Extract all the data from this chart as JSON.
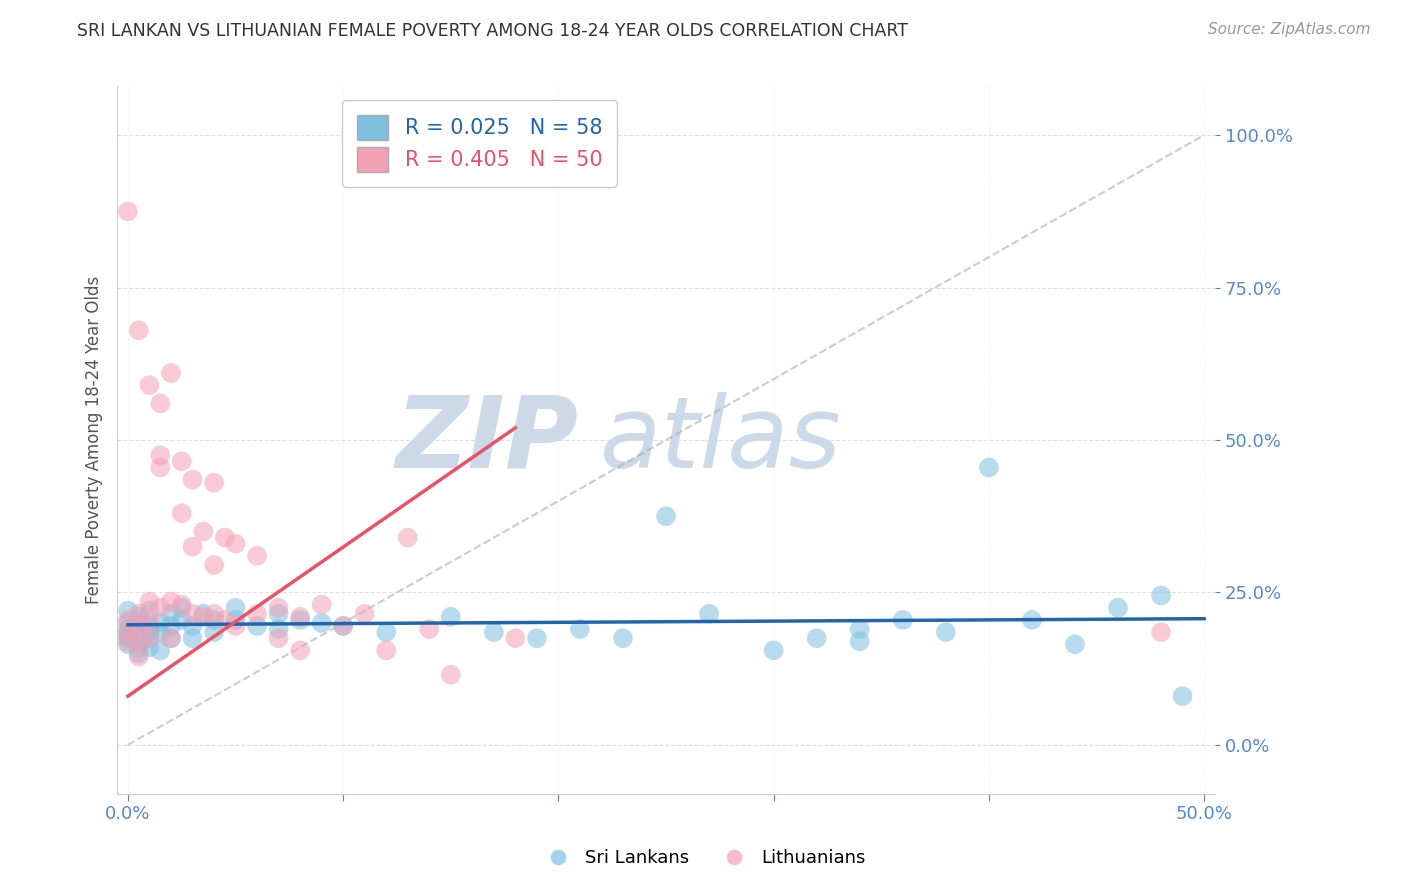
{
  "title": "SRI LANKAN VS LITHUANIAN FEMALE POVERTY AMONG 18-24 YEAR OLDS CORRELATION CHART",
  "source": "Source: ZipAtlas.com",
  "ylabel": "Female Poverty Among 18-24 Year Olds",
  "xlim": [
    -0.005,
    0.505
  ],
  "ylim": [
    -0.08,
    1.08
  ],
  "xticks": [
    0.0,
    0.1,
    0.2,
    0.3,
    0.4,
    0.5
  ],
  "xticklabels_show": [
    "0.0%",
    "",
    "",
    "",
    "",
    "50.0%"
  ],
  "yticks": [
    0.0,
    0.25,
    0.5,
    0.75,
    1.0
  ],
  "yticklabels": [
    "0.0%",
    "25.0%",
    "50.0%",
    "75.0%",
    "100.0%"
  ],
  "sri_lankan_color": "#7fbfdf",
  "lithuanian_color": "#f4a0b5",
  "sri_lankan_line_color": "#2166ac",
  "lithuanian_line_color": "#e8536a",
  "legend_r_sri": "R = 0.025",
  "legend_n_sri": "N = 58",
  "legend_r_lit": "R = 0.405",
  "legend_n_lit": "N = 50",
  "watermark_zip": "ZIP",
  "watermark_atlas": "atlas",
  "watermark_color": "#ccd9e8",
  "background_color": "#ffffff",
  "grid_color": "#dddddd",
  "tick_color": "#5588cc",
  "sri_lankans_x": [
    0.0,
    0.0,
    0.0,
    0.0,
    0.0,
    0.0,
    0.005,
    0.005,
    0.005,
    0.005,
    0.005,
    0.005,
    0.01,
    0.01,
    0.01,
    0.01,
    0.01,
    0.015,
    0.015,
    0.015,
    0.02,
    0.02,
    0.02,
    0.025,
    0.025,
    0.03,
    0.03,
    0.035,
    0.04,
    0.04,
    0.05,
    0.05,
    0.06,
    0.07,
    0.07,
    0.08,
    0.09,
    0.1,
    0.12,
    0.15,
    0.17,
    0.19,
    0.21,
    0.23,
    0.25,
    0.27,
    0.3,
    0.32,
    0.34,
    0.34,
    0.36,
    0.38,
    0.4,
    0.42,
    0.44,
    0.46,
    0.48,
    0.49
  ],
  "sri_lankans_y": [
    0.2,
    0.19,
    0.18,
    0.175,
    0.165,
    0.22,
    0.195,
    0.21,
    0.16,
    0.18,
    0.15,
    0.2,
    0.185,
    0.175,
    0.22,
    0.195,
    0.16,
    0.2,
    0.185,
    0.155,
    0.215,
    0.195,
    0.175,
    0.205,
    0.225,
    0.195,
    0.175,
    0.215,
    0.205,
    0.185,
    0.205,
    0.225,
    0.195,
    0.215,
    0.19,
    0.205,
    0.2,
    0.195,
    0.185,
    0.21,
    0.185,
    0.175,
    0.19,
    0.175,
    0.375,
    0.215,
    0.155,
    0.175,
    0.17,
    0.19,
    0.205,
    0.185,
    0.455,
    0.205,
    0.165,
    0.225,
    0.245,
    0.08
  ],
  "lithuanians_x": [
    0.0,
    0.0,
    0.0,
    0.0,
    0.005,
    0.005,
    0.005,
    0.005,
    0.005,
    0.01,
    0.01,
    0.01,
    0.01,
    0.015,
    0.015,
    0.015,
    0.015,
    0.02,
    0.02,
    0.02,
    0.025,
    0.025,
    0.025,
    0.03,
    0.03,
    0.03,
    0.035,
    0.035,
    0.04,
    0.04,
    0.04,
    0.045,
    0.045,
    0.05,
    0.05,
    0.06,
    0.06,
    0.07,
    0.07,
    0.08,
    0.08,
    0.09,
    0.1,
    0.11,
    0.12,
    0.13,
    0.14,
    0.15,
    0.18,
    0.48
  ],
  "lithuanians_y": [
    0.205,
    0.185,
    0.17,
    0.875,
    0.195,
    0.68,
    0.215,
    0.17,
    0.145,
    0.205,
    0.59,
    0.235,
    0.175,
    0.56,
    0.475,
    0.455,
    0.225,
    0.61,
    0.235,
    0.175,
    0.465,
    0.38,
    0.23,
    0.435,
    0.325,
    0.215,
    0.35,
    0.21,
    0.43,
    0.295,
    0.215,
    0.34,
    0.205,
    0.33,
    0.195,
    0.31,
    0.215,
    0.225,
    0.175,
    0.155,
    0.21,
    0.23,
    0.195,
    0.215,
    0.155,
    0.34,
    0.19,
    0.115,
    0.175,
    0.185
  ],
  "sri_lankan_trend": [
    0.0,
    0.5,
    0.197,
    0.207
  ],
  "lithuanian_trend": [
    0.0,
    0.18,
    0.08,
    0.52
  ]
}
